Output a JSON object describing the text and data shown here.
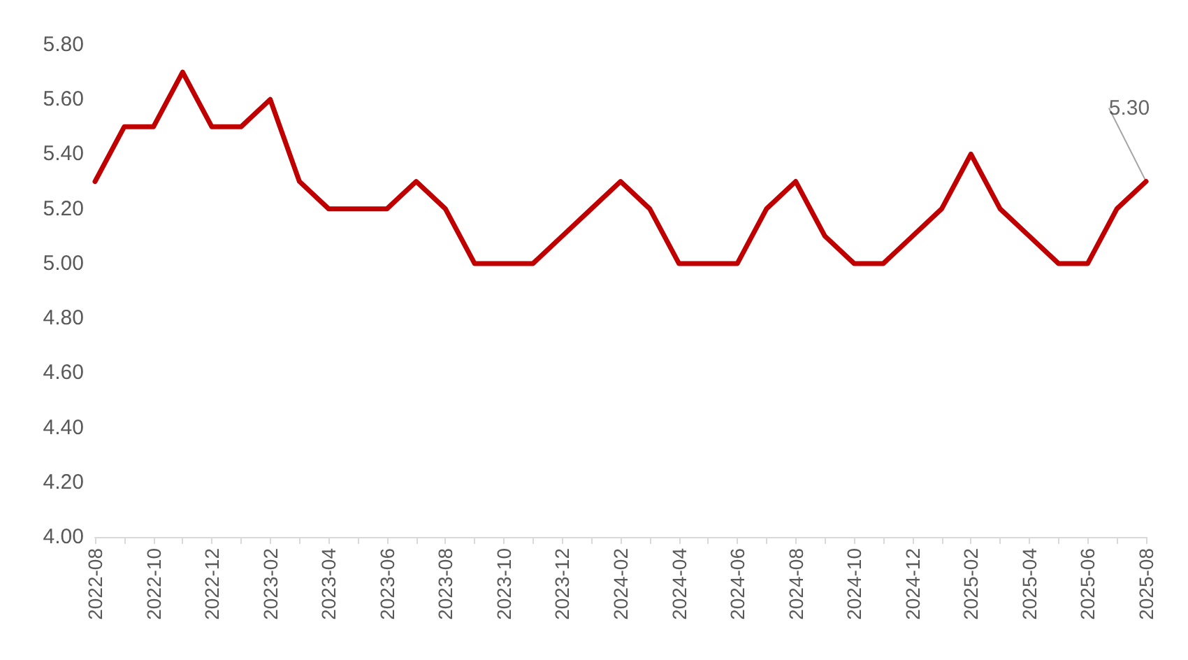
{
  "chart_data": {
    "type": "line",
    "categories": [
      "2022-08",
      null,
      "2022-10",
      null,
      "2022-12",
      null,
      "2023-02",
      null,
      "2023-04",
      null,
      "2023-06",
      null,
      "2023-08",
      null,
      "2023-10",
      null,
      "2023-12",
      null,
      "2024-02",
      null,
      "2024-04",
      null,
      "2024-06",
      null,
      "2024-08",
      null,
      "2024-10",
      null,
      "2024-12",
      null,
      "2025-02",
      null,
      "2025-04",
      null,
      "2025-06",
      null,
      "2025-08"
    ],
    "series": [
      {
        "color": "#c00000",
        "values": [
          5.3,
          5.5,
          5.5,
          5.7,
          5.5,
          5.5,
          5.6,
          5.3,
          5.2,
          5.2,
          5.2,
          5.3,
          5.2,
          5.0,
          5.0,
          5.0,
          5.1,
          5.2,
          5.3,
          5.2,
          5.0,
          5.0,
          5.0,
          5.2,
          5.3,
          5.1,
          5.0,
          5.0,
          5.1,
          5.2,
          5.4,
          5.2,
          5.1,
          5.0,
          5.0,
          5.2,
          5.3
        ]
      }
    ],
    "ylim": [
      4,
      5.8
    ],
    "yticks": [
      {
        "value": 4,
        "label": "4.00"
      },
      {
        "value": 4.2,
        "label": "4.20"
      },
      {
        "value": 4.4,
        "label": "4.40"
      },
      {
        "value": 4.6,
        "label": "4.60"
      },
      {
        "value": 4.8,
        "label": "4.80"
      },
      {
        "value": 5,
        "label": "5.00"
      },
      {
        "value": 5.2,
        "label": "5.20"
      },
      {
        "value": 5.4,
        "label": "5.40"
      },
      {
        "value": 5.6,
        "label": "5.60"
      },
      {
        "value": 5.8,
        "label": "5.80"
      }
    ],
    "annotations": [
      {
        "text": "5.30",
        "x": "2025-08",
        "y": 5.3
      }
    ],
    "grid": false,
    "marker": "none",
    "line_style": "solid"
  }
}
